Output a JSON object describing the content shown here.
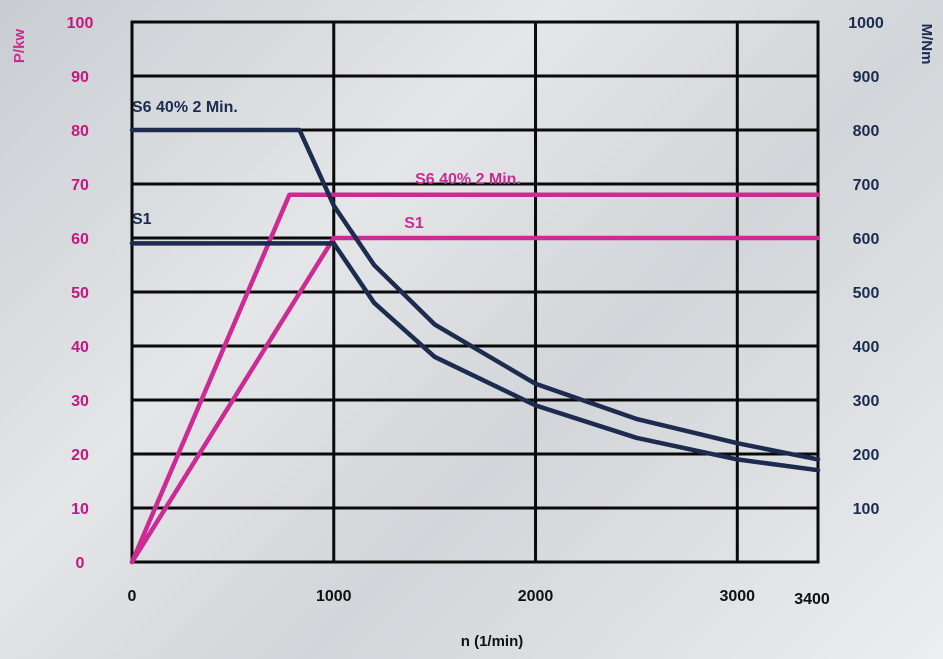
{
  "chart_data": {
    "type": "line",
    "xlabel": "n (1/min)",
    "y_left_label": "P/kw",
    "y_right_label": "M/Nm",
    "x_ticks": [
      0,
      1000,
      2000,
      3000,
      3400
    ],
    "xlim": [
      0,
      3400
    ],
    "y_left_ticks": [
      0,
      10,
      20,
      30,
      40,
      50,
      60,
      70,
      80,
      90,
      100
    ],
    "y_left_lim": [
      0,
      100
    ],
    "y_right_ticks": [
      100,
      200,
      300,
      400,
      500,
      600,
      700,
      800,
      900,
      1000
    ],
    "y_right_lim": [
      0,
      1000
    ],
    "grid": true,
    "colors": {
      "power": "#cc2b94",
      "torque": "#1c2b4e",
      "left_axis_title": "#cc2b94",
      "right_axis_title": "#1c2b4e",
      "left_ticks": "#c4187f",
      "right_ticks": "#1c2b4e",
      "grid": "#0a0a0a"
    },
    "series": [
      {
        "name": "S6 40% 2 Min.",
        "quantity": "power",
        "axis": "left",
        "x": [
          0,
          780,
          3400
        ],
        "y": [
          0,
          68,
          68
        ]
      },
      {
        "name": "S1",
        "quantity": "power",
        "axis": "left",
        "x": [
          0,
          1000,
          3400
        ],
        "y": [
          0,
          60,
          60
        ]
      },
      {
        "name": "S6 40% 2 Min.",
        "quantity": "torque",
        "axis": "right",
        "x": [
          0,
          830,
          1000,
          1200,
          1500,
          2000,
          2500,
          3000,
          3400
        ],
        "y": [
          800,
          800,
          660,
          550,
          440,
          330,
          265,
          220,
          190
        ]
      },
      {
        "name": "S1",
        "quantity": "torque",
        "axis": "right",
        "x": [
          0,
          1000,
          1200,
          1500,
          2000,
          2500,
          3000,
          3400
        ],
        "y": [
          590,
          590,
          480,
          380,
          290,
          230,
          190,
          170
        ]
      }
    ]
  }
}
